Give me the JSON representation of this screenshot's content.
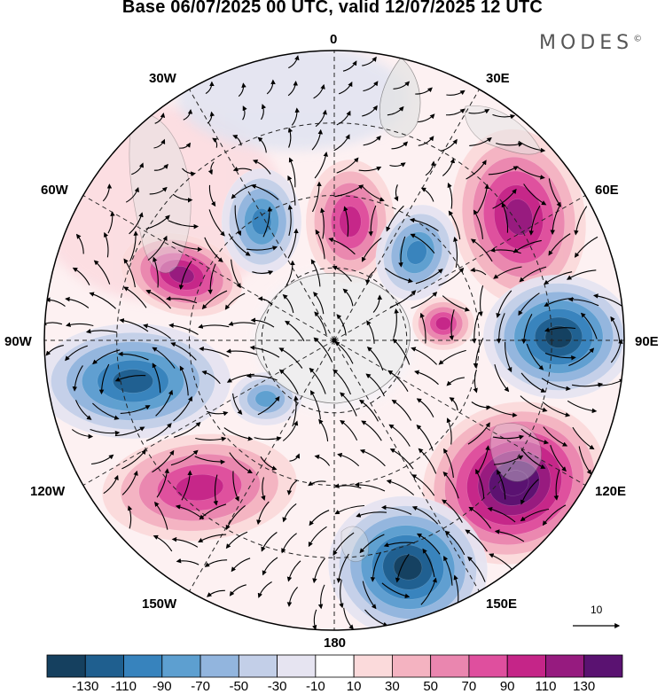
{
  "title": "Base 06/07/2025 00 UTC, valid 12/07/2025 12 UTC",
  "logo": {
    "text": "MODES",
    "mark": "©"
  },
  "longitude_labels": {
    "lon_0": "0",
    "lon_30e": "30E",
    "lon_60e": "60E",
    "lon_90e": "90E",
    "lon_120e": "120E",
    "lon_150e": "150E",
    "lon_180": "180",
    "lon_150w": "150W",
    "lon_120w": "120W",
    "lon_90w": "90W",
    "lon_60w": "60W",
    "lon_30w": "30W"
  },
  "reference_vector": {
    "label": "10"
  },
  "colorbar": {
    "ticks": [
      "-130",
      "-110",
      "-90",
      "-70",
      "-50",
      "-30",
      "-10",
      "10",
      "30",
      "50",
      "70",
      "90",
      "110",
      "130"
    ],
    "colors": [
      "#15405f",
      "#1f5f8f",
      "#3783bd",
      "#5d9fd0",
      "#92b5de",
      "#c3cfe8",
      "#e6e4f1",
      "#ffffff",
      "#fbdadb",
      "#f4b3c1",
      "#ea86af",
      "#df4f9e",
      "#c52588",
      "#961b7f",
      "#5a1271"
    ]
  },
  "anomalies": [
    {
      "name": "high-60e",
      "sign": "positive",
      "level": 90
    },
    {
      "name": "low-90e",
      "sign": "negative",
      "level": -110
    },
    {
      "name": "high-120e",
      "sign": "positive",
      "level": 130
    },
    {
      "name": "low-150e",
      "sign": "negative",
      "level": -110
    },
    {
      "name": "high-130w",
      "sign": "positive",
      "level": 70
    },
    {
      "name": "low-100w",
      "sign": "negative",
      "level": -90
    },
    {
      "name": "high-60w",
      "sign": "positive",
      "level": 90
    },
    {
      "name": "low-35w",
      "sign": "negative",
      "level": -70
    },
    {
      "name": "high-0",
      "sign": "positive",
      "level": 70
    },
    {
      "name": "low-30e",
      "sign": "negative",
      "level": -70
    },
    {
      "name": "high-75e",
      "sign": "positive",
      "level": 70
    },
    {
      "name": "low-165w",
      "sign": "negative",
      "level": -50
    }
  ]
}
